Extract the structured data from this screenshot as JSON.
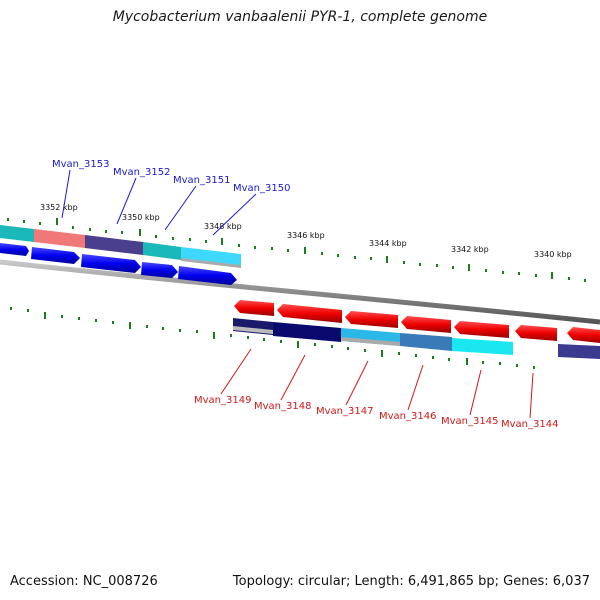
{
  "title": "Mycobacterium vanbaalenii PYR-1, complete genome",
  "footer": {
    "accession": "Accession: NC_008726",
    "summary": "Topology: circular; Length: 6,491,865 bp; Genes: 6,037"
  },
  "colors": {
    "backbone": "#8a8a8a",
    "tick": "#1e7a1e",
    "forward_cds": "#0000ee",
    "reverse_cds": "#dd0000",
    "label_forward": "#1a1acc",
    "label_reverse": "#cc1a1a"
  },
  "scale_labels": [
    "3352 kbp",
    "3350 kbp",
    "3348 kbp",
    "3346 kbp",
    "3344 kbp",
    "3342 kbp",
    "3340 kbp"
  ],
  "upper_genes": [
    "Mvan_3153",
    "Mvan_3152",
    "Mvan_3151",
    "Mvan_3150"
  ],
  "lower_genes": [
    "Mvan_3149",
    "Mvan_3148",
    "Mvan_3147",
    "Mvan_3146",
    "Mvan_3145",
    "Mvan_3144"
  ]
}
